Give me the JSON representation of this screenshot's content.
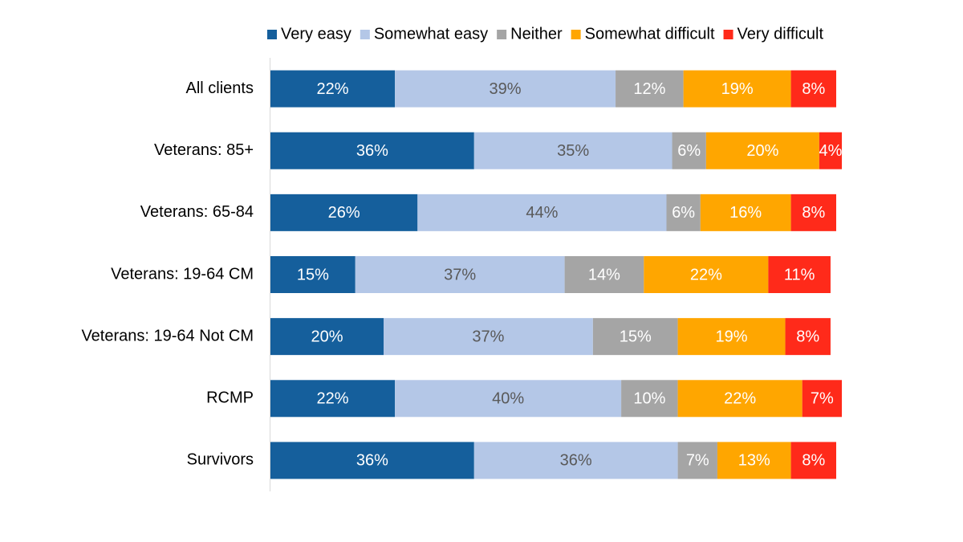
{
  "chart_data": {
    "type": "stacked-bar-horizontal",
    "categories": [
      "All clients",
      "Veterans: 85+",
      "Veterans: 65-84",
      "Veterans: 19-64 CM",
      "Veterans: 19-64 Not CM",
      "RCMP",
      "Survivors"
    ],
    "xlim": [
      0,
      100
    ],
    "series": [
      {
        "name": "Very easy",
        "color": "#155f9c",
        "label_color": "#ffffff",
        "values": [
          22,
          36,
          26,
          15,
          20,
          22,
          36
        ],
        "value_labels": [
          "22%",
          "36%",
          "26%",
          "15%",
          "20%",
          "22%",
          "36%"
        ]
      },
      {
        "name": "Somewhat easy",
        "color": "#b4c7e7",
        "label_color": "#595959",
        "values": [
          39,
          35,
          44,
          37,
          37,
          40,
          36
        ],
        "value_labels": [
          "39%",
          "35%",
          "44%",
          "37%",
          "37%",
          "40%",
          "36%"
        ]
      },
      {
        "name": "Neither",
        "color": "#a5a5a5",
        "label_color": "#ffffff",
        "values": [
          12,
          6,
          6,
          14,
          15,
          10,
          7
        ],
        "value_labels": [
          "12%",
          "6%",
          "6%",
          "14%",
          "15%",
          "10%",
          "7%"
        ]
      },
      {
        "name": "Somewhat difficult",
        "color": "#ffa600",
        "label_color": "#ffffff",
        "values": [
          19,
          20,
          16,
          22,
          19,
          22,
          13
        ],
        "value_labels": [
          "19%",
          "20%",
          "16%",
          "22%",
          "19%",
          "22%",
          "13%"
        ]
      },
      {
        "name": "Very difficult",
        "color": "#ff2a1a",
        "label_color": "#ffffff",
        "values": [
          8,
          4,
          8,
          11,
          8,
          7,
          8
        ],
        "value_labels": [
          "8%",
          "4%",
          "8%",
          "11%",
          "8%",
          "7%",
          "8%"
        ]
      }
    ]
  }
}
